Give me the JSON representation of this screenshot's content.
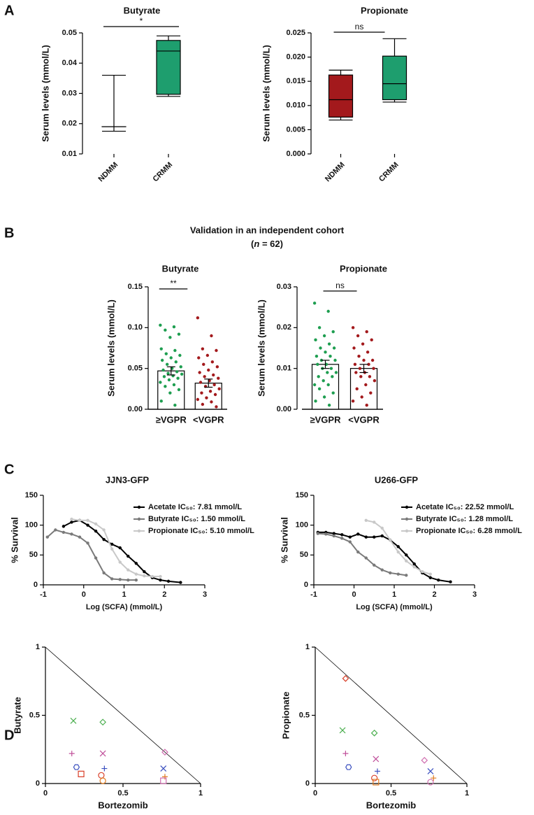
{
  "figure": {
    "panel_labels": [
      "A",
      "B",
      "C",
      "D"
    ],
    "cohort_title": "Validation in an independent cohort",
    "cohort_n": [
      "(",
      "n",
      " = 62)"
    ]
  },
  "chart_data": [
    {
      "type": "box",
      "title": "Butyrate",
      "ylabel": "Serum levels (mmol/L)",
      "categories": [
        "NDMM",
        "CRMM"
      ],
      "boxes": [
        {
          "min": 0.0175,
          "q1": 0.019,
          "median": 0.019,
          "q3": 0.019,
          "max": 0.036,
          "color": "#ffffff"
        },
        {
          "min": 0.029,
          "q1": 0.0297,
          "median": 0.044,
          "q3": 0.0475,
          "max": 0.049,
          "color": "#1e9e6e"
        }
      ],
      "ylim": [
        0.01,
        0.05
      ],
      "yticks": [
        0.01,
        0.02,
        0.03,
        0.04,
        0.05
      ],
      "significance": "*"
    },
    {
      "type": "box",
      "title": "Propionate",
      "ylabel": "Serum levels (mmol/L)",
      "categories": [
        "NDMM",
        "CRMM"
      ],
      "boxes": [
        {
          "min": 0.007,
          "q1": 0.0076,
          "median": 0.0112,
          "q3": 0.0163,
          "max": 0.0173,
          "color": "#a3191c"
        },
        {
          "min": 0.0107,
          "q1": 0.0112,
          "median": 0.0145,
          "q3": 0.0202,
          "max": 0.0238,
          "color": "#1e9e6e"
        }
      ],
      "ylim": [
        0,
        0.025
      ],
      "yticks": [
        {
          "value": 0,
          "label": "0.000"
        },
        {
          "value": 0.005,
          "label": "0.005"
        },
        {
          "value": 0.01,
          "label": "0.010"
        },
        {
          "value": 0.015,
          "label": "0.015"
        },
        {
          "value": 0.02,
          "label": "0.020"
        },
        {
          "value": 0.025,
          "label": "0.025"
        }
      ],
      "significance": "ns"
    },
    {
      "type": "bar",
      "title": "Butyrate",
      "ylabel": "Serum levels (mmol/L)",
      "categories": [
        "≥VGPR",
        "<VGPR"
      ],
      "values": [
        0.047,
        0.032
      ],
      "errors": [
        0.005,
        0.005
      ],
      "colors": [
        "#1e9e50",
        "#a3191c"
      ],
      "points": [
        [
          0.103,
          0.101,
          0.097,
          0.092,
          0.088,
          0.074,
          0.072,
          0.068,
          0.066,
          0.063,
          0.06,
          0.058,
          0.055,
          0.052,
          0.05,
          0.048,
          0.046,
          0.044,
          0.043,
          0.041,
          0.04,
          0.038,
          0.036,
          0.033,
          0.03,
          0.028,
          0.024,
          0.02,
          0.01,
          0.005
        ],
        [
          0.112,
          0.09,
          0.074,
          0.072,
          0.066,
          0.063,
          0.058,
          0.055,
          0.052,
          0.048,
          0.045,
          0.042,
          0.04,
          0.038,
          0.035,
          0.033,
          0.03,
          0.028,
          0.025,
          0.022,
          0.02,
          0.018,
          0.014,
          0.012,
          0.009,
          0.006,
          0.003
        ]
      ],
      "ylim": [
        0,
        0.15
      ],
      "yticks": [
        {
          "value": 0,
          "label": "0.00"
        },
        0.05,
        {
          "value": 0.1,
          "label": "0.10"
        },
        0.15
      ],
      "significance": "**"
    },
    {
      "type": "bar",
      "title": "Propionate",
      "ylabel": "Serum levels (mmol/L)",
      "categories": [
        "≥VGPR",
        "<VGPR"
      ],
      "values": [
        0.011,
        0.01
      ],
      "errors": [
        0.001,
        0.001
      ],
      "colors": [
        "#1e9e50",
        "#a3191c"
      ],
      "points": [
        [
          0.026,
          0.024,
          0.02,
          0.019,
          0.018,
          0.017,
          0.016,
          0.015,
          0.015,
          0.014,
          0.013,
          0.013,
          0.012,
          0.012,
          0.011,
          0.011,
          0.01,
          0.01,
          0.009,
          0.009,
          0.008,
          0.008,
          0.007,
          0.006,
          0.006,
          0.005,
          0.004,
          0.003,
          0.002,
          0.001
        ],
        [
          0.02,
          0.019,
          0.018,
          0.017,
          0.016,
          0.015,
          0.014,
          0.013,
          0.012,
          0.012,
          0.011,
          0.011,
          0.01,
          0.01,
          0.009,
          0.009,
          0.008,
          0.008,
          0.007,
          0.006,
          0.005,
          0.004,
          0.003,
          0.002,
          0.001
        ]
      ],
      "ylim": [
        0,
        0.03
      ],
      "yticks": [
        {
          "value": 0,
          "label": "0.00"
        },
        0.01,
        0.02,
        0.03
      ],
      "significance": "ns"
    },
    {
      "type": "line",
      "title": "JJN3-GFP",
      "xlabel": "Log (SCFA) (mmol/L)",
      "ylabel": "% Survival",
      "series": [
        {
          "name": "Acetate IC₅₀: 7.81 mmol/L",
          "color": "#000000",
          "x": [
            -0.5,
            -0.3,
            -0.1,
            0.1,
            0.3,
            0.5,
            0.7,
            0.9,
            1.1,
            1.3,
            1.5,
            1.7,
            1.9,
            2.1,
            2.4
          ],
          "values": [
            98,
            105,
            108,
            100,
            90,
            76,
            68,
            62,
            48,
            36,
            22,
            12,
            8,
            6,
            4
          ]
        },
        {
          "name": "Butyrate IC₅₀: 1.50 mmol/L",
          "color": "#7a7a7a",
          "x": [
            -0.9,
            -0.7,
            -0.5,
            -0.3,
            -0.1,
            0.1,
            0.3,
            0.5,
            0.7,
            0.9,
            1.1,
            1.3
          ],
          "values": [
            80,
            92,
            88,
            85,
            80,
            70,
            45,
            20,
            10,
            9,
            8,
            8
          ]
        },
        {
          "name": "Propionate IC₅₀: 5.10 mmol/L",
          "color": "#c8c8c8",
          "x": [
            -0.3,
            -0.1,
            0.1,
            0.3,
            0.5,
            0.7,
            0.9,
            1.1,
            1.3,
            1.5,
            1.7,
            1.9
          ],
          "values": [
            110,
            108,
            108,
            102,
            92,
            60,
            38,
            25,
            18,
            15,
            14,
            14
          ]
        }
      ],
      "xlim": [
        -1,
        3
      ],
      "xticks": [
        -1,
        0,
        1,
        2,
        3
      ],
      "ylim": [
        0,
        150
      ],
      "yticks": [
        0,
        50,
        100,
        150
      ]
    },
    {
      "type": "line",
      "title": "U266-GFP",
      "xlabel": "Log (SCFA) (mmol/L)",
      "ylabel": "% Survival",
      "series": [
        {
          "name": "Acetate IC₅₀: 22.52 mmol/L",
          "color": "#000000",
          "x": [
            -0.9,
            -0.7,
            -0.5,
            -0.3,
            -0.1,
            0.1,
            0.3,
            0.5,
            0.7,
            0.9,
            1.1,
            1.3,
            1.5,
            1.7,
            1.9,
            2.1,
            2.4
          ],
          "values": [
            88,
            88,
            86,
            84,
            80,
            85,
            80,
            80,
            82,
            75,
            64,
            50,
            35,
            20,
            12,
            8,
            5
          ]
        },
        {
          "name": "Butyrate IC₅₀: 1.28 mmol/L",
          "color": "#7a7a7a",
          "x": [
            -0.9,
            -0.7,
            -0.5,
            -0.3,
            -0.1,
            0.1,
            0.3,
            0.5,
            0.7,
            0.9,
            1.1,
            1.3
          ],
          "values": [
            86,
            85,
            82,
            78,
            72,
            55,
            45,
            33,
            25,
            20,
            18,
            16
          ]
        },
        {
          "name": "Propionate IC₅₀: 6.28 mmol/L",
          "color": "#c8c8c8",
          "x": [
            0.3,
            0.5,
            0.7,
            0.9,
            1.1,
            1.3,
            1.5,
            1.7,
            1.9
          ],
          "values": [
            108,
            105,
            95,
            75,
            55,
            40,
            30,
            22,
            18
          ]
        }
      ],
      "xlim": [
        -1,
        3
      ],
      "xticks": [
        -1,
        0,
        1,
        2,
        3
      ],
      "ylim": [
        0,
        150
      ],
      "yticks": [
        0,
        50,
        100,
        150
      ]
    },
    {
      "type": "scatter",
      "xlabel": "Bortezomib",
      "ylabel": "Butyrate",
      "points": [
        {
          "x": 0.18,
          "y": 0.46,
          "marker": "x",
          "color": "#4caf50"
        },
        {
          "x": 0.37,
          "y": 0.45,
          "marker": "diamond",
          "color": "#4caf50"
        },
        {
          "x": 0.17,
          "y": 0.22,
          "marker": "plus",
          "color": "#c0509b"
        },
        {
          "x": 0.37,
          "y": 0.22,
          "marker": "x",
          "color": "#c0509b"
        },
        {
          "x": 0.2,
          "y": 0.12,
          "marker": "hexagon",
          "color": "#3a4fbf"
        },
        {
          "x": 0.38,
          "y": 0.11,
          "marker": "plus",
          "color": "#3a4fbf"
        },
        {
          "x": 0.76,
          "y": 0.11,
          "marker": "x",
          "color": "#3a4fbf"
        },
        {
          "x": 0.77,
          "y": 0.23,
          "marker": "diamond",
          "color": "#d070b0"
        },
        {
          "x": 0.23,
          "y": 0.07,
          "marker": "square",
          "color": "#d9402a"
        },
        {
          "x": 0.36,
          "y": 0.06,
          "marker": "circle",
          "color": "#d9402a"
        },
        {
          "x": 0.77,
          "y": 0.05,
          "marker": "plus",
          "color": "#e07b20"
        },
        {
          "x": 0.37,
          "y": 0.02,
          "marker": "circle",
          "color": "#e07b20"
        },
        {
          "x": 0.76,
          "y": 0.02,
          "marker": "square",
          "color": "#d070b0"
        }
      ],
      "xlim": [
        0,
        1
      ],
      "xticks": [
        0,
        0.5,
        1
      ],
      "ylim": [
        0,
        1
      ],
      "yticks": [
        0,
        0.5,
        1
      ]
    },
    {
      "type": "scatter",
      "xlabel": "Bortezomib",
      "ylabel": "Propionate",
      "points": [
        {
          "x": 0.2,
          "y": 0.77,
          "marker": "diamond",
          "color": "#d9402a"
        },
        {
          "x": 0.18,
          "y": 0.39,
          "marker": "x",
          "color": "#4caf50"
        },
        {
          "x": 0.39,
          "y": 0.37,
          "marker": "diamond",
          "color": "#4caf50"
        },
        {
          "x": 0.2,
          "y": 0.22,
          "marker": "plus",
          "color": "#c0509b"
        },
        {
          "x": 0.4,
          "y": 0.18,
          "marker": "x",
          "color": "#c0509b"
        },
        {
          "x": 0.72,
          "y": 0.17,
          "marker": "diamond",
          "color": "#d070b0"
        },
        {
          "x": 0.22,
          "y": 0.12,
          "marker": "hexagon",
          "color": "#3a4fbf"
        },
        {
          "x": 0.41,
          "y": 0.09,
          "marker": "plus",
          "color": "#3a4fbf"
        },
        {
          "x": 0.76,
          "y": 0.09,
          "marker": "x",
          "color": "#3a4fbf"
        },
        {
          "x": 0.78,
          "y": 0.04,
          "marker": "plus",
          "color": "#e07b20"
        },
        {
          "x": 0.39,
          "y": 0.04,
          "marker": "circle",
          "color": "#d9402a"
        },
        {
          "x": 0.4,
          "y": 0.01,
          "marker": "square",
          "color": "#e07b20"
        },
        {
          "x": 0.76,
          "y": 0.01,
          "marker": "circle",
          "color": "#d070b0"
        }
      ],
      "xlim": [
        0,
        1
      ],
      "xticks": [
        0,
        0.5,
        1
      ],
      "ylim": [
        0,
        1
      ],
      "yticks": [
        0,
        0.5,
        1
      ]
    }
  ]
}
